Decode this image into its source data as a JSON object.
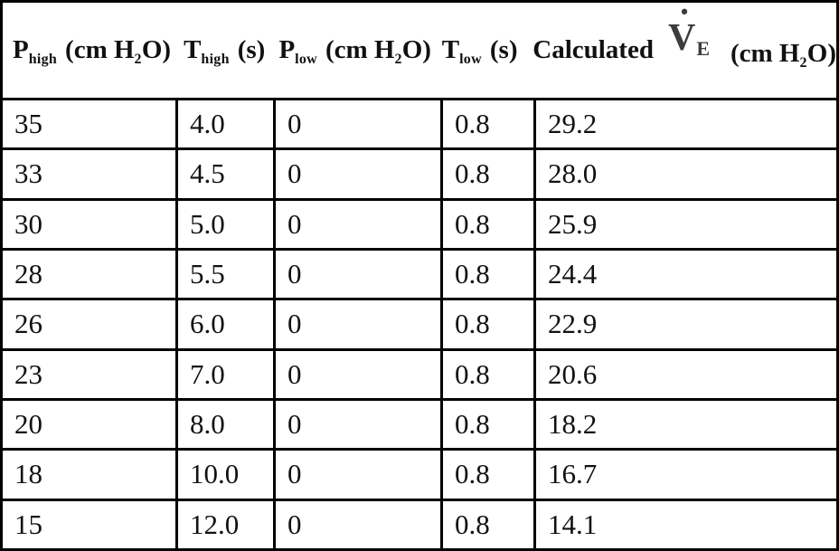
{
  "table": {
    "headers": {
      "col1": {
        "symbol": "P",
        "symbol_sub": "high",
        "unit_pre": "(cm H",
        "unit_sub": "2",
        "unit_post": "O)"
      },
      "col2": {
        "symbol": "T",
        "symbol_sub": "high",
        "unit": "(s)"
      },
      "col3": {
        "symbol": "P",
        "symbol_sub": "low",
        "unit_pre": "(cm H",
        "unit_sub": "2",
        "unit_post": "O)"
      },
      "col4": {
        "symbol": "T",
        "symbol_sub": "low",
        "unit": "(s)"
      },
      "col5": {
        "label": "Calculated",
        "symbol": "V",
        "symbol_dot": "˙",
        "symbol_sub": "E",
        "unit_pre": "(cm H",
        "unit_sub": "2",
        "unit_post": "O)"
      }
    },
    "rows": [
      [
        "35",
        "4.0",
        "0",
        "0.8",
        "29.2"
      ],
      [
        "33",
        "4.5",
        "0",
        "0.8",
        "28.0"
      ],
      [
        "30",
        "5.0",
        "0",
        "0.8",
        "25.9"
      ],
      [
        "28",
        "5.5",
        "0",
        "0.8",
        "24.4"
      ],
      [
        "26",
        "6.0",
        "0",
        "0.8",
        "22.9"
      ],
      [
        "23",
        "7.0",
        "0",
        "0.8",
        "20.6"
      ],
      [
        "20",
        "8.0",
        "0",
        "0.8",
        "18.2"
      ],
      [
        "18",
        "10.0",
        "0",
        "0.8",
        "16.7"
      ],
      [
        "15",
        "12.0",
        "0",
        "0.8",
        "14.1"
      ]
    ],
    "colors": {
      "border": "#000000",
      "text": "#111111",
      "background": "#ffffff",
      "symbol_gray": "#3d3d3d"
    }
  }
}
